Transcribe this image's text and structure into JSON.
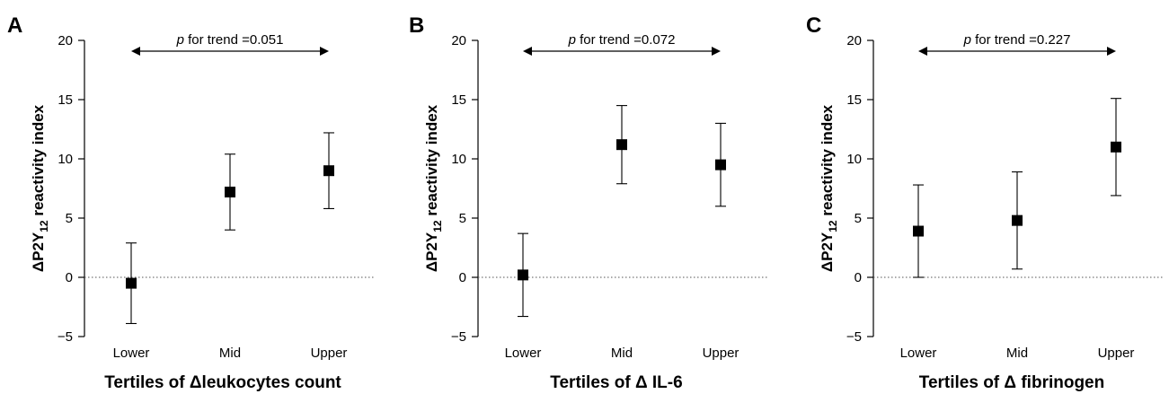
{
  "chart_data": [
    {
      "type": "scatter",
      "panel": "A",
      "xlabel": "Tertiles of Δleukocytes count",
      "ylabel": "ΔP2Y12 reactivity index",
      "ylabel_parts": {
        "pre": "ΔP2Y",
        "sub": "12",
        "post": " reactivity index"
      },
      "categories": [
        "Lower",
        "Mid",
        "Upper"
      ],
      "values": [
        -0.5,
        7.2,
        9.0
      ],
      "error_low": [
        -3.9,
        4.0,
        5.8
      ],
      "error_high": [
        2.9,
        10.4,
        12.2
      ],
      "ylim": [
        -5,
        20
      ],
      "yticks": [
        -5,
        0,
        5,
        10,
        15,
        20
      ],
      "ytick_labels": [
        "−5",
        "0",
        "5",
        "10",
        "15",
        "20"
      ],
      "reference_line": 0,
      "annotation": {
        "p": "p",
        "text": " for trend =0.051",
        "from": "Lower",
        "to": "Upper"
      }
    },
    {
      "type": "scatter",
      "panel": "B",
      "xlabel": "Tertiles of Δ IL-6",
      "ylabel": "ΔP2Y12 reactivity index",
      "ylabel_parts": {
        "pre": "ΔP2Y",
        "sub": "12",
        "post": " reactivity index"
      },
      "categories": [
        "Lower",
        "Mid",
        "Upper"
      ],
      "values": [
        0.2,
        11.2,
        9.5
      ],
      "error_low": [
        -3.3,
        7.9,
        6.0
      ],
      "error_high": [
        3.7,
        14.5,
        13.0
      ],
      "ylim": [
        -5,
        20
      ],
      "yticks": [
        -5,
        0,
        5,
        10,
        15,
        20
      ],
      "ytick_labels": [
        "−5",
        "0",
        "5",
        "10",
        "15",
        "20"
      ],
      "reference_line": 0,
      "annotation": {
        "p": "p",
        "text": " for trend =0.072",
        "from": "Lower",
        "to": "Upper"
      }
    },
    {
      "type": "scatter",
      "panel": "C",
      "xlabel": "Tertiles of Δ fibrinogen",
      "ylabel": "ΔP2Y12 reactivity index",
      "ylabel_parts": {
        "pre": "ΔP2Y",
        "sub": "12",
        "post": " reactivity index"
      },
      "categories": [
        "Lower",
        "Mid",
        "Upper"
      ],
      "values": [
        3.9,
        4.8,
        11.0
      ],
      "error_low": [
        0.0,
        0.7,
        6.9
      ],
      "error_high": [
        7.8,
        8.9,
        15.1
      ],
      "ylim": [
        -5,
        20
      ],
      "yticks": [
        -5,
        0,
        5,
        10,
        15,
        20
      ],
      "ytick_labels": [
        "−5",
        "0",
        "5",
        "10",
        "15",
        "20"
      ],
      "reference_line": 0,
      "annotation": {
        "p": "p",
        "text": " for trend =0.227",
        "from": "Lower",
        "to": "Upper"
      }
    }
  ]
}
